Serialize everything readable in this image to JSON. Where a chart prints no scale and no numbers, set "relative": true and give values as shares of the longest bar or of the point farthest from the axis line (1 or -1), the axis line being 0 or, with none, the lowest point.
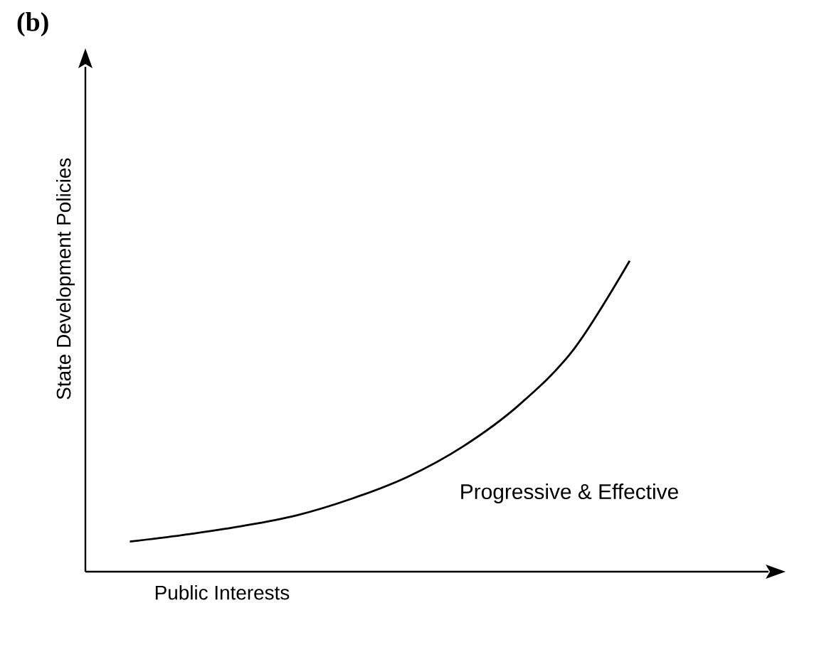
{
  "chart_data": {
    "type": "line",
    "title": "(b)",
    "xlabel": "Public Interests",
    "ylabel": "State Development Policies",
    "annotations": [
      "Progressive & Effective"
    ],
    "relative": true,
    "marker": "none",
    "line_style": "solid",
    "categories": [
      null,
      null,
      null,
      null,
      null,
      null,
      null,
      null,
      null,
      null
    ],
    "series": [
      {
        "color": "#000000",
        "values": [
          0.097,
          0.119,
          0.146,
          0.181,
          0.235,
          0.305,
          0.403,
          0.535,
          0.717,
          1.0
        ]
      }
    ]
  }
}
